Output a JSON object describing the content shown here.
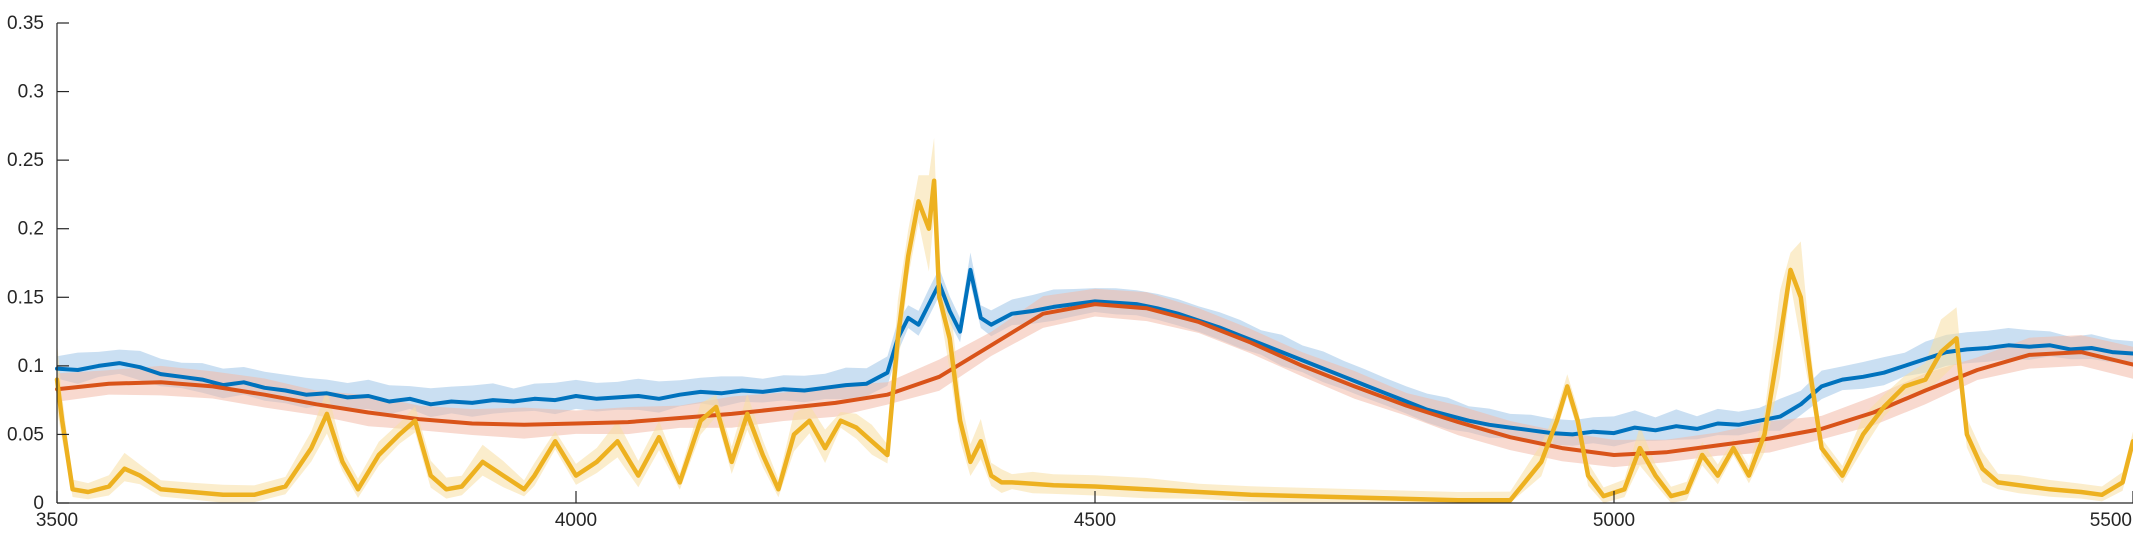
{
  "chart_data": {
    "type": "line",
    "title": "",
    "xlabel": "",
    "ylabel": "",
    "xlim": [
      3500,
      5500
    ],
    "ylim": [
      0,
      0.35
    ],
    "x_ticks": [
      3500,
      4000,
      4500,
      5000,
      5500
    ],
    "x_tick_labels": [
      "3500",
      "4000",
      "4500",
      "5000",
      "5500"
    ],
    "y_ticks": [
      0,
      0.05,
      0.1,
      0.15,
      0.2,
      0.25,
      0.3,
      0.35
    ],
    "y_tick_labels": [
      "0",
      "0.05",
      "0.1",
      "0.15",
      "0.2",
      "0.25",
      "0.3",
      "0.35"
    ],
    "grid": false,
    "legend": "none",
    "series": [
      {
        "color": "#0072BD",
        "band_color": "#9EC5E8",
        "x": [
          3500,
          3520,
          3540,
          3560,
          3580,
          3600,
          3620,
          3640,
          3660,
          3680,
          3700,
          3720,
          3740,
          3760,
          3780,
          3800,
          3820,
          3840,
          3860,
          3880,
          3900,
          3920,
          3940,
          3960,
          3980,
          4000,
          4020,
          4040,
          4060,
          4080,
          4100,
          4120,
          4140,
          4160,
          4180,
          4200,
          4220,
          4240,
          4260,
          4280,
          4300,
          4310,
          4320,
          4330,
          4340,
          4350,
          4360,
          4370,
          4380,
          4390,
          4400,
          4420,
          4440,
          4460,
          4480,
          4500,
          4520,
          4540,
          4560,
          4580,
          4600,
          4620,
          4640,
          4660,
          4680,
          4700,
          4720,
          4740,
          4760,
          4780,
          4800,
          4820,
          4840,
          4860,
          4880,
          4900,
          4920,
          4940,
          4960,
          4980,
          5000,
          5020,
          5040,
          5060,
          5080,
          5100,
          5120,
          5140,
          5160,
          5180,
          5200,
          5220,
          5240,
          5260,
          5280,
          5300,
          5320,
          5340,
          5360,
          5380,
          5400,
          5420,
          5440,
          5460,
          5480,
          5500
        ],
        "y": [
          0.098,
          0.097,
          0.1,
          0.102,
          0.099,
          0.094,
          0.092,
          0.09,
          0.086,
          0.088,
          0.084,
          0.082,
          0.079,
          0.08,
          0.077,
          0.078,
          0.074,
          0.076,
          0.072,
          0.074,
          0.073,
          0.075,
          0.074,
          0.076,
          0.075,
          0.078,
          0.076,
          0.077,
          0.078,
          0.076,
          0.079,
          0.081,
          0.08,
          0.082,
          0.081,
          0.083,
          0.082,
          0.084,
          0.086,
          0.087,
          0.095,
          0.12,
          0.135,
          0.13,
          0.145,
          0.16,
          0.14,
          0.125,
          0.17,
          0.135,
          0.13,
          0.138,
          0.14,
          0.143,
          0.145,
          0.147,
          0.146,
          0.145,
          0.142,
          0.138,
          0.133,
          0.128,
          0.122,
          0.116,
          0.11,
          0.104,
          0.098,
          0.092,
          0.086,
          0.08,
          0.074,
          0.068,
          0.064,
          0.06,
          0.057,
          0.055,
          0.053,
          0.051,
          0.05,
          0.052,
          0.051,
          0.055,
          0.053,
          0.056,
          0.054,
          0.058,
          0.057,
          0.06,
          0.063,
          0.072,
          0.085,
          0.09,
          0.092,
          0.095,
          0.1,
          0.105,
          0.11,
          0.112,
          0.113,
          0.115,
          0.114,
          0.115,
          0.112,
          0.113,
          0.11,
          0.109
        ]
      },
      {
        "color": "#D95319",
        "band_color": "#F2B9A8",
        "x": [
          3500,
          3550,
          3600,
          3650,
          3700,
          3750,
          3800,
          3850,
          3900,
          3950,
          4000,
          4050,
          4100,
          4150,
          4200,
          4250,
          4300,
          4350,
          4400,
          4450,
          4500,
          4550,
          4600,
          4650,
          4700,
          4750,
          4800,
          4850,
          4900,
          4950,
          5000,
          5050,
          5100,
          5150,
          5200,
          5250,
          5300,
          5350,
          5400,
          5450,
          5500
        ],
        "y": [
          0.083,
          0.087,
          0.088,
          0.085,
          0.079,
          0.072,
          0.066,
          0.061,
          0.058,
          0.057,
          0.058,
          0.059,
          0.062,
          0.065,
          0.069,
          0.073,
          0.079,
          0.092,
          0.115,
          0.138,
          0.145,
          0.142,
          0.132,
          0.117,
          0.1,
          0.085,
          0.071,
          0.059,
          0.048,
          0.04,
          0.035,
          0.037,
          0.042,
          0.047,
          0.054,
          0.066,
          0.082,
          0.097,
          0.108,
          0.11,
          0.101
        ]
      },
      {
        "color": "#EDB120",
        "band_color": "#F7DFA3",
        "x": [
          3500,
          3505,
          3515,
          3530,
          3550,
          3565,
          3580,
          3600,
          3630,
          3660,
          3690,
          3720,
          3745,
          3760,
          3775,
          3790,
          3810,
          3830,
          3845,
          3860,
          3875,
          3890,
          3910,
          3930,
          3950,
          3960,
          3980,
          4000,
          4020,
          4040,
          4060,
          4080,
          4100,
          4120,
          4135,
          4150,
          4165,
          4180,
          4195,
          4210,
          4225,
          4240,
          4255,
          4270,
          4285,
          4300,
          4310,
          4320,
          4330,
          4340,
          4345,
          4350,
          4360,
          4370,
          4380,
          4390,
          4400,
          4410,
          4420,
          4440,
          4460,
          4500,
          4550,
          4600,
          4650,
          4700,
          4750,
          4800,
          4850,
          4900,
          4930,
          4945,
          4955,
          4965,
          4975,
          4990,
          5010,
          5025,
          5040,
          5055,
          5070,
          5085,
          5100,
          5115,
          5130,
          5145,
          5160,
          5170,
          5180,
          5190,
          5200,
          5220,
          5240,
          5260,
          5280,
          5300,
          5315,
          5330,
          5340,
          5355,
          5370,
          5390,
          5420,
          5450,
          5470,
          5490,
          5500
        ],
        "y": [
          0.09,
          0.06,
          0.01,
          0.008,
          0.012,
          0.025,
          0.02,
          0.01,
          0.008,
          0.006,
          0.006,
          0.012,
          0.04,
          0.065,
          0.03,
          0.01,
          0.035,
          0.05,
          0.06,
          0.02,
          0.01,
          0.012,
          0.03,
          0.02,
          0.01,
          0.02,
          0.045,
          0.02,
          0.03,
          0.045,
          0.02,
          0.048,
          0.015,
          0.06,
          0.07,
          0.03,
          0.065,
          0.035,
          0.01,
          0.05,
          0.06,
          0.04,
          0.06,
          0.055,
          0.045,
          0.035,
          0.12,
          0.18,
          0.22,
          0.2,
          0.235,
          0.15,
          0.12,
          0.06,
          0.03,
          0.045,
          0.02,
          0.015,
          0.015,
          0.014,
          0.013,
          0.012,
          0.01,
          0.008,
          0.006,
          0.005,
          0.004,
          0.003,
          0.002,
          0.002,
          0.03,
          0.06,
          0.085,
          0.06,
          0.02,
          0.005,
          0.01,
          0.04,
          0.02,
          0.005,
          0.008,
          0.035,
          0.02,
          0.04,
          0.02,
          0.05,
          0.12,
          0.17,
          0.15,
          0.09,
          0.04,
          0.02,
          0.05,
          0.07,
          0.085,
          0.09,
          0.11,
          0.12,
          0.05,
          0.025,
          0.015,
          0.013,
          0.01,
          0.008,
          0.006,
          0.015,
          0.045
        ]
      }
    ]
  }
}
